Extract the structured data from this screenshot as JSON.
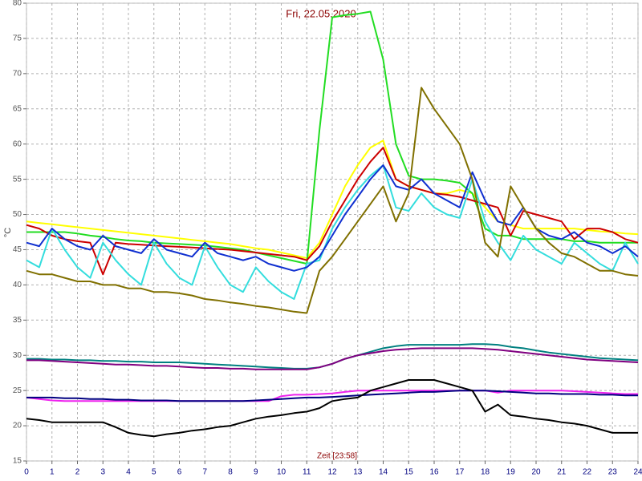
{
  "chart_data": {
    "type": "line",
    "title": "Fri, 22.05.2020",
    "y_label": "°C",
    "x_label": "Zeit [23:58]",
    "x": [
      0,
      0.5,
      1,
      1.5,
      2,
      2.5,
      3,
      3.5,
      4,
      4.5,
      5,
      5.5,
      6,
      6.5,
      7,
      7.5,
      8,
      8.5,
      9,
      9.5,
      10,
      10.5,
      11,
      11.5,
      12,
      12.5,
      13,
      13.5,
      14,
      14.5,
      15,
      15.5,
      16,
      16.5,
      17,
      17.5,
      18,
      18.5,
      19,
      19.5,
      20,
      20.5,
      21,
      21.5,
      22,
      22.5,
      23,
      23.5,
      24
    ],
    "xlim": [
      0,
      24
    ],
    "xticks": [
      0,
      1,
      2,
      3,
      4,
      5,
      6,
      7,
      8,
      9,
      10,
      11,
      12,
      13,
      14,
      15,
      16,
      17,
      18,
      19,
      20,
      21,
      22,
      23,
      24
    ],
    "ylim": [
      15,
      80
    ],
    "yticks": [
      15,
      20,
      25,
      30,
      35,
      40,
      45,
      50,
      55,
      60,
      65,
      70,
      75,
      80
    ],
    "grid": true,
    "series": [
      {
        "color": "#ffff00",
        "values": [
          49,
          48.8,
          48.6,
          48.4,
          48.2,
          48,
          47.8,
          47.6,
          47.4,
          47.2,
          47,
          46.8,
          46.6,
          46.4,
          46.2,
          46,
          45.8,
          45.5,
          45.2,
          45,
          44.6,
          44.2,
          43.8,
          46,
          50,
          54,
          57,
          59.5,
          60.5,
          55,
          54,
          53.5,
          53,
          53,
          53.5,
          53,
          51,
          49,
          48.5,
          48,
          48,
          48,
          48,
          48,
          47.8,
          47.6,
          47.5,
          47.3,
          47.2
        ]
      },
      {
        "color": "#22dd22",
        "values": [
          47.5,
          47.5,
          47.5,
          47.5,
          47.3,
          47,
          46.8,
          46.5,
          46.3,
          46.2,
          46,
          45.9,
          45.8,
          45.7,
          45.6,
          45.4,
          45.2,
          45,
          44.6,
          44.2,
          43.8,
          43.4,
          43,
          62,
          78,
          78.3,
          78.5,
          78.8,
          72,
          60,
          55.5,
          55,
          55,
          54.8,
          54.5,
          53,
          48,
          47,
          47,
          46.5,
          46.5,
          46.5,
          46.5,
          46.2,
          46.2,
          46,
          46,
          46,
          46
        ]
      },
      {
        "color": "#cc0000",
        "values": [
          48.5,
          48,
          47,
          46.5,
          46.2,
          46,
          41.5,
          46,
          45.8,
          45.7,
          45.6,
          45.5,
          45.4,
          45.3,
          45.2,
          45.1,
          45,
          44.8,
          44.6,
          44.4,
          44.2,
          44,
          43.5,
          45.5,
          49,
          52,
          55,
          57.5,
          59.5,
          55,
          54,
          53.5,
          53,
          52.8,
          52.5,
          52,
          51.5,
          51,
          47,
          50.5,
          50,
          49.5,
          49,
          46.5,
          48,
          48,
          47.5,
          46.5,
          46
        ]
      },
      {
        "color": "#33dddd",
        "values": [
          43.5,
          42.5,
          48,
          45,
          42.5,
          41,
          46,
          43.5,
          41.5,
          40,
          46,
          43,
          41,
          40,
          45.5,
          42.5,
          40,
          39,
          42.5,
          40.5,
          39,
          38,
          43,
          43.5,
          48,
          51,
          53.5,
          55.5,
          57,
          51,
          50.5,
          53,
          51,
          50,
          49.5,
          55,
          49,
          46,
          43.5,
          47,
          45,
          44,
          43,
          46,
          44.5,
          43,
          42,
          46,
          43
        ]
      },
      {
        "color": "#1030d0",
        "values": [
          46,
          45.5,
          48,
          46.5,
          45.5,
          45,
          47,
          45.5,
          45,
          44.5,
          46.5,
          45,
          44.5,
          44,
          46,
          44.5,
          44,
          43.5,
          44,
          43,
          42.5,
          42,
          42.5,
          44,
          47,
          50,
          52.5,
          55,
          57,
          54,
          53.5,
          55,
          53,
          52,
          51,
          56,
          52,
          49,
          48.5,
          51,
          48,
          47,
          46.5,
          47.5,
          46,
          45.5,
          44.5,
          45.5,
          44
        ]
      },
      {
        "color": "#807000",
        "values": [
          42,
          41.5,
          41.5,
          41,
          40.5,
          40.5,
          40,
          40,
          39.5,
          39.5,
          39,
          39,
          38.8,
          38.5,
          38,
          37.8,
          37.5,
          37.3,
          37,
          36.8,
          36.5,
          36.2,
          36,
          42,
          44,
          46.5,
          49,
          51.5,
          54,
          49,
          53,
          68,
          65,
          62.5,
          60,
          55,
          46,
          44,
          54,
          51,
          48,
          46,
          44.5,
          44,
          43,
          42,
          42,
          41.5,
          41.3
        ]
      },
      {
        "color": "#008080",
        "values": [
          29.5,
          29.5,
          29.4,
          29.4,
          29.3,
          29.3,
          29.2,
          29.2,
          29.1,
          29.1,
          29,
          29,
          29,
          28.9,
          28.8,
          28.7,
          28.6,
          28.5,
          28.4,
          28.3,
          28.2,
          28.1,
          28.1,
          28.3,
          28.8,
          29.5,
          30,
          30.5,
          31,
          31.3,
          31.5,
          31.5,
          31.5,
          31.5,
          31.5,
          31.6,
          31.6,
          31.5,
          31.2,
          31,
          30.7,
          30.4,
          30.2,
          30,
          29.8,
          29.6,
          29.5,
          29.4,
          29.3
        ]
      },
      {
        "color": "#800080",
        "values": [
          29.3,
          29.3,
          29.2,
          29.1,
          29,
          28.9,
          28.8,
          28.7,
          28.7,
          28.6,
          28.5,
          28.5,
          28.4,
          28.3,
          28.2,
          28.2,
          28.1,
          28.1,
          28,
          28,
          28,
          28,
          28,
          28.3,
          28.8,
          29.5,
          30,
          30.3,
          30.6,
          30.8,
          30.9,
          31,
          31,
          31,
          31,
          31,
          30.9,
          30.8,
          30.6,
          30.4,
          30.2,
          30,
          29.8,
          29.6,
          29.4,
          29.3,
          29.2,
          29.1,
          29
        ]
      },
      {
        "color": "#ee22ee",
        "values": [
          24,
          23.8,
          23.6,
          23.5,
          23.5,
          23.5,
          23.5,
          23.5,
          23.5,
          23.5,
          23.5,
          23.5,
          23.5,
          23.5,
          23.5,
          23.5,
          23.5,
          23.5,
          23.5,
          23.5,
          24.2,
          24.4,
          24.4,
          24.5,
          24.6,
          24.8,
          25,
          25,
          25,
          25,
          25,
          25,
          25,
          25,
          25,
          25,
          25,
          24.7,
          25,
          25,
          25,
          25,
          25,
          24.9,
          24.8,
          24.7,
          24.6,
          24.5,
          24.5
        ]
      },
      {
        "color": "#000080",
        "values": [
          24,
          24,
          24,
          23.9,
          23.9,
          23.8,
          23.8,
          23.7,
          23.7,
          23.6,
          23.6,
          23.6,
          23.5,
          23.5,
          23.5,
          23.5,
          23.5,
          23.5,
          23.6,
          23.7,
          23.8,
          23.9,
          24,
          24,
          24.1,
          24.2,
          24.3,
          24.4,
          24.5,
          24.6,
          24.7,
          24.8,
          24.8,
          24.9,
          25,
          25,
          25,
          24.9,
          24.8,
          24.7,
          24.6,
          24.6,
          24.5,
          24.5,
          24.5,
          24.4,
          24.4,
          24.3,
          24.3
        ]
      },
      {
        "color": "#000000",
        "values": [
          21,
          20.8,
          20.5,
          20.5,
          20.5,
          20.5,
          20.5,
          19.8,
          19,
          18.7,
          18.5,
          18.8,
          19,
          19.3,
          19.5,
          19.8,
          20,
          20.5,
          21,
          21.3,
          21.5,
          21.8,
          22,
          22.5,
          23.5,
          23.8,
          24,
          25,
          25.5,
          26,
          26.5,
          26.5,
          26.5,
          26,
          25.5,
          25,
          22,
          23,
          21.5,
          21.3,
          21,
          20.8,
          20.5,
          20.3,
          20,
          19.5,
          19,
          19,
          19
        ]
      }
    ]
  }
}
